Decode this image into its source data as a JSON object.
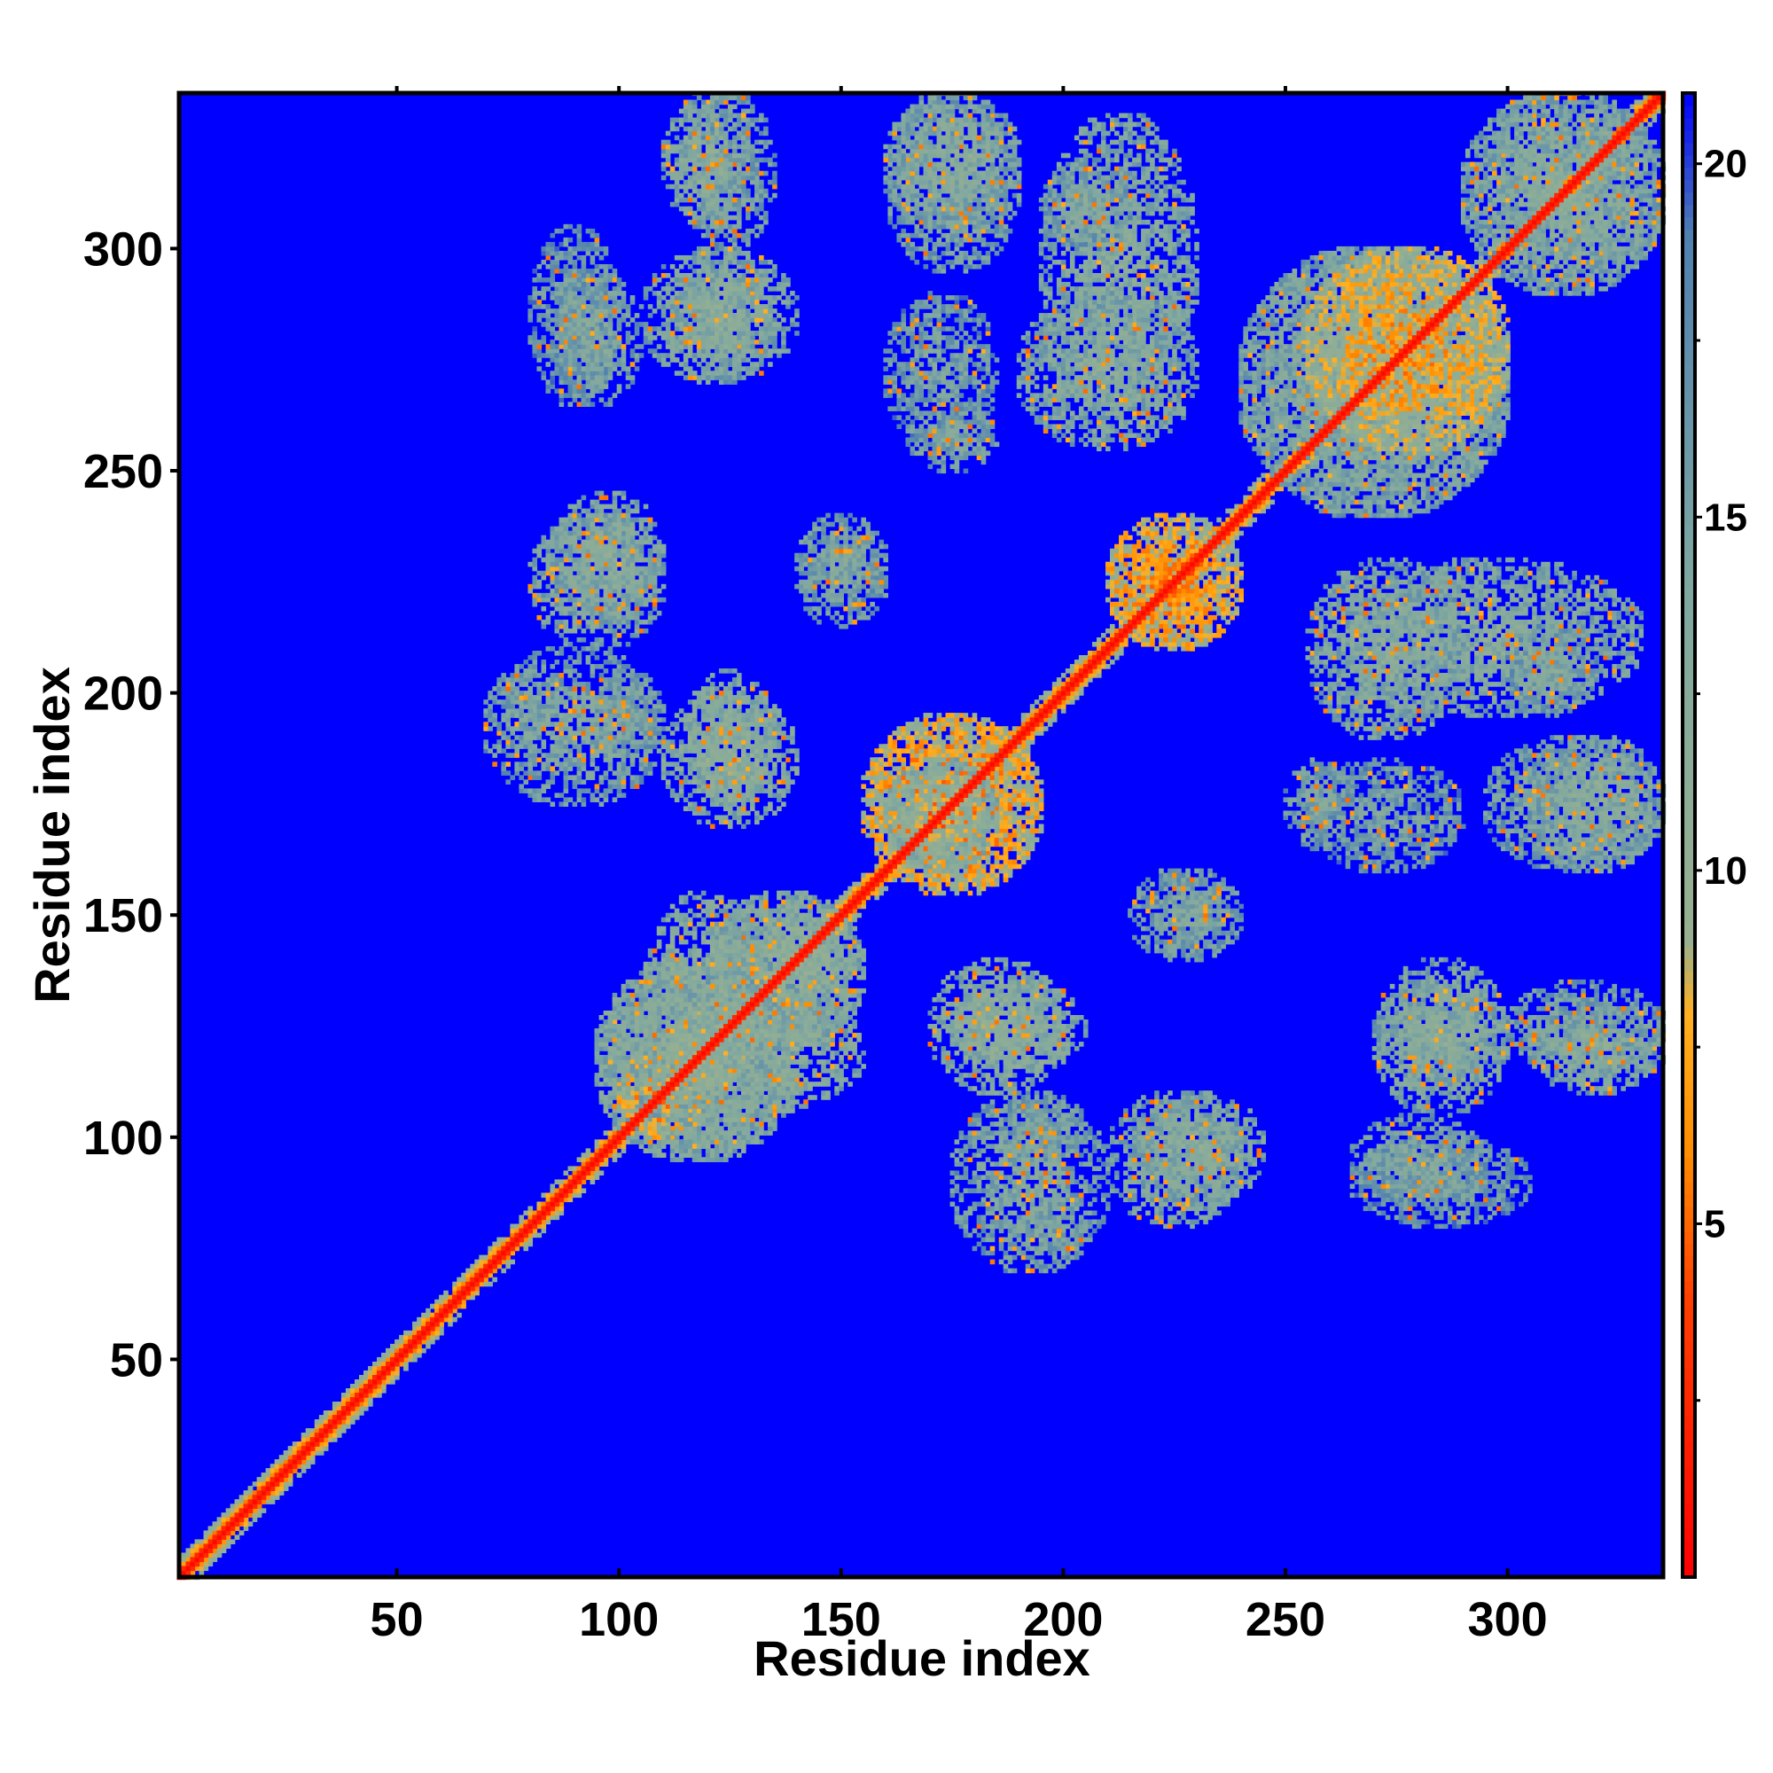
{
  "chart_data": {
    "type": "heatmap",
    "title": "",
    "xlabel": "Residue index",
    "ylabel": "Residue index",
    "n_residues": 335,
    "xlim": [
      1,
      335
    ],
    "ylim": [
      1,
      335
    ],
    "x_ticks": [
      50,
      100,
      150,
      200,
      250,
      300
    ],
    "y_ticks": [
      50,
      100,
      150,
      200,
      250,
      300
    ],
    "colorbar": {
      "ticks": [
        5,
        10,
        15,
        20
      ],
      "range": [
        0,
        21
      ],
      "colors": [
        {
          "value": 0,
          "color": "#ff0000"
        },
        {
          "value": 4,
          "color": "#ff4000"
        },
        {
          "value": 6,
          "color": "#ff8c00"
        },
        {
          "value": 8,
          "color": "#ffb020"
        },
        {
          "value": 9,
          "color": "#98b090"
        },
        {
          "value": 14,
          "color": "#80a8a0"
        },
        {
          "value": 19,
          "color": "#5080b0"
        },
        {
          "value": 21,
          "color": "#0000ff"
        }
      ]
    },
    "background_color": "#0000ff",
    "grid": false,
    "contact_regions": [
      {
        "x": [
          1,
          60
        ],
        "y": [
          1,
          60
        ],
        "pattern": "diagonal",
        "value": 2
      },
      {
        "x": [
          1,
          335
        ],
        "y": [
          1,
          335
        ],
        "pattern": "diagonal",
        "value": 1
      },
      {
        "x": [
          95,
          140
        ],
        "y": [
          95,
          140
        ],
        "value": 11
      },
      {
        "x": [
          100,
          120
        ],
        "y": [
          100,
          120
        ],
        "pattern": "anti-diagonal",
        "value": 6
      },
      {
        "x": [
          120,
          155
        ],
        "y": [
          120,
          155
        ],
        "value": 11
      },
      {
        "x": [
          155,
          195
        ],
        "y": [
          155,
          195
        ],
        "pattern": "anti-diagonal",
        "value": 6
      },
      {
        "x": [
          160,
          185
        ],
        "y": [
          160,
          185
        ],
        "value": 10
      },
      {
        "x": [
          210,
          240
        ],
        "y": [
          210,
          240
        ],
        "pattern": "anti-diagonal",
        "value": 6
      },
      {
        "x": [
          240,
          300
        ],
        "y": [
          240,
          300
        ],
        "value": 12
      },
      {
        "x": [
          255,
          300
        ],
        "y": [
          255,
          300
        ],
        "pattern": "anti-diagonal",
        "value": 7
      },
      {
        "x": [
          290,
          335
        ],
        "y": [
          290,
          335
        ],
        "value": 12
      },
      {
        "x": [
          80,
          100
        ],
        "y": [
          265,
          305
        ],
        "value": 14
      },
      {
        "x": [
          110,
          135
        ],
        "y": [
          270,
          300
        ],
        "value": 12
      },
      {
        "x": [
          115,
          135
        ],
        "y": [
          300,
          335
        ],
        "value": 13
      },
      {
        "x": [
          160,
          190
        ],
        "y": [
          295,
          335
        ],
        "value": 13
      },
      {
        "x": [
          160,
          185
        ],
        "y": [
          255,
          290
        ],
        "value": 14
      },
      {
        "x": [
          195,
          230
        ],
        "y": [
          265,
          330
        ],
        "value": 12
      },
      {
        "x": [
          80,
          110
        ],
        "y": [
          210,
          240
        ],
        "value": 12
      },
      {
        "x": [
          140,
          160
        ],
        "y": [
          215,
          235
        ],
        "value": 13
      },
      {
        "x": [
          75,
          85
        ],
        "y": [
          190,
          205
        ],
        "value": 13
      },
      {
        "x": [
          95,
          110
        ],
        "y": [
          185,
          205
        ],
        "value": 13
      },
      {
        "x": [
          115,
          135
        ],
        "y": [
          175,
          205
        ],
        "value": 11
      },
      {
        "x": [
          105,
          135
        ],
        "y": [
          95,
          155
        ],
        "value": 11
      },
      {
        "x": [
          170,
          200
        ],
        "y": [
          110,
          140
        ],
        "value": 11
      },
      {
        "x": [
          175,
          210
        ],
        "y": [
          70,
          110
        ],
        "value": 13
      },
      {
        "x": [
          215,
          245
        ],
        "y": [
          85,
          110
        ],
        "value": 12
      },
      {
        "x": [
          220,
          240
        ],
        "y": [
          140,
          160
        ],
        "value": 13
      },
      {
        "x": [
          250,
          265
        ],
        "y": [
          165,
          185
        ],
        "value": 13
      },
      {
        "x": [
          270,
          300
        ],
        "y": [
          105,
          140
        ],
        "value": 12
      },
      {
        "x": [
          265,
          295
        ],
        "y": [
          85,
          105
        ],
        "value": 13
      },
      {
        "x": [
          305,
          335
        ],
        "y": [
          110,
          130
        ],
        "value": 12
      },
      {
        "x": [
          305,
          335
        ],
        "y": [
          160,
          190
        ],
        "value": 12
      },
      {
        "x": [
          255,
          290
        ],
        "y": [
          190,
          230
        ],
        "value": 12
      },
      {
        "x": [
          300,
          320
        ],
        "y": [
          195,
          215
        ],
        "value": 13
      }
    ]
  }
}
